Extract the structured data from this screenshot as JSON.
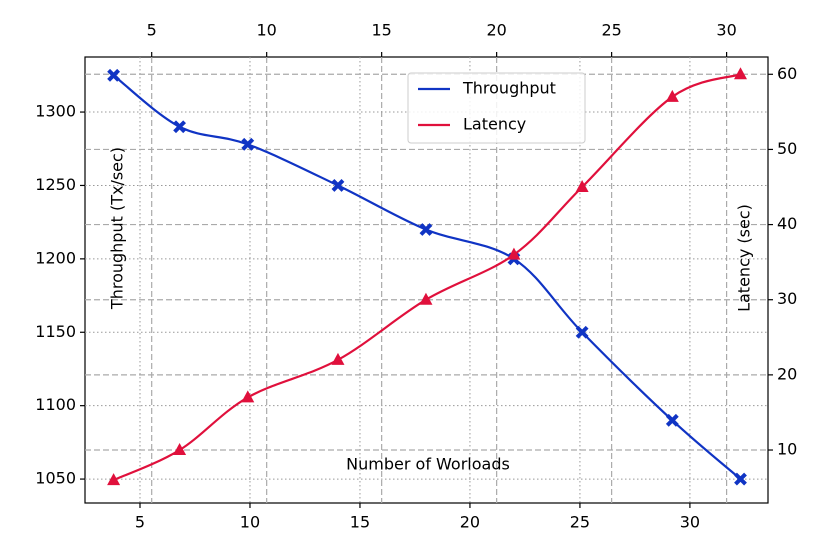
{
  "chart_data": {
    "type": "line",
    "xlabel": "Number of Worloads",
    "ylabel": "Throughput (Tx/sec)",
    "y2label": "Latency (sec)",
    "x": [
      3.8,
      6.8,
      9.9,
      14,
      18,
      22,
      25.1,
      29.2,
      32.3
    ],
    "series": [
      {
        "name": "Throughput",
        "color": "#1034c4",
        "marker": "X",
        "values": [
          1325,
          1290,
          1278,
          1250,
          1220,
          1200,
          1150,
          1090,
          1050
        ]
      },
      {
        "name": "Latency",
        "color": "#e0103c",
        "marker": "^",
        "axis": "y2",
        "values": [
          6,
          10,
          17,
          22,
          30,
          36,
          45,
          57,
          60
        ]
      }
    ],
    "xlim": [
      2.5,
      33.55
    ],
    "xticks": [
      5,
      10,
      15,
      20,
      25,
      30
    ],
    "x2lim": [
      2.1,
      31.8
    ],
    "x2ticks": [
      5,
      10,
      15,
      20,
      25,
      30
    ],
    "ylim": [
      1033.7,
      1337.5
    ],
    "yticks": [
      1050,
      1100,
      1150,
      1200,
      1250,
      1300
    ],
    "y2lim": [
      2.95,
      62.3
    ],
    "y2ticks": [
      10,
      20,
      30,
      40,
      50,
      60
    ],
    "grid": true,
    "legend": "upper center"
  }
}
